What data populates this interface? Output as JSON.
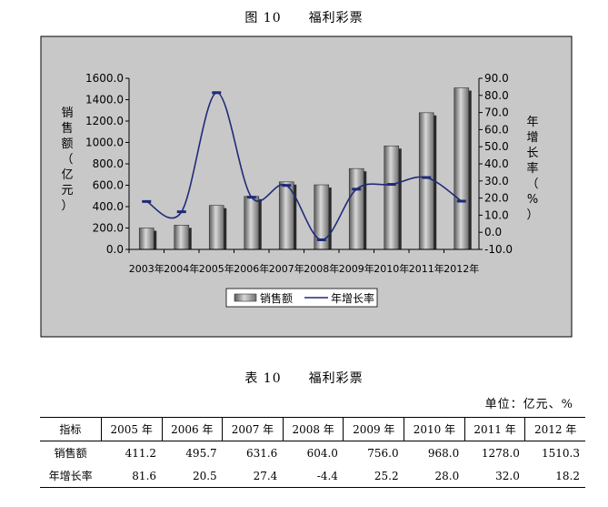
{
  "figure_title": "图 10　　福利彩票",
  "chart_data": {
    "type": "bar",
    "categories": [
      "2003年",
      "2004年",
      "2005年",
      "2006年",
      "2007年",
      "2008年",
      "2009年",
      "2010年",
      "2011年",
      "2012年"
    ],
    "series": [
      {
        "name": "销售额",
        "type": "bar",
        "axis": "left",
        "values": [
          200,
          227,
          411.2,
          495.7,
          631.6,
          604.0,
          756.0,
          968.0,
          1278.0,
          1510.3
        ]
      },
      {
        "name": "年增长率",
        "type": "line",
        "axis": "right",
        "values": [
          18.0,
          12.0,
          81.6,
          20.5,
          27.4,
          -4.4,
          25.2,
          28.0,
          32.0,
          18.2
        ]
      }
    ],
    "ylabel": "销售额（亿元）",
    "y2label": "年增长率（%）",
    "ylim": [
      0,
      1600
    ],
    "y2lim": [
      -10,
      90
    ],
    "yticks": [
      "0.0",
      "200.0",
      "400.0",
      "600.0",
      "800.0",
      "1000.0",
      "1200.0",
      "1400.0",
      "1600.0"
    ],
    "y2ticks": [
      "-10.0",
      "0.0",
      "10.0",
      "20.0",
      "30.0",
      "40.0",
      "50.0",
      "60.0",
      "70.0",
      "80.0",
      "90.0"
    ],
    "legend_position": "bottom",
    "grid": false,
    "colors": {
      "bar": "#8a8a8a",
      "line": "#1f2a78",
      "plot_bg": "#c8c8c8"
    }
  },
  "table": {
    "title": "表 10　　福利彩票",
    "unit": "单位：亿元、%",
    "headers": [
      "指标",
      "2005 年",
      "2006 年",
      "2007 年",
      "2008 年",
      "2009 年",
      "2010 年",
      "2011 年",
      "2012 年"
    ],
    "rows": [
      [
        "销售额",
        "411.2",
        "495.7",
        "631.6",
        "604.0",
        "756.0",
        "968.0",
        "1278.0",
        "1510.3"
      ],
      [
        "年增长率",
        "81.6",
        "20.5",
        "27.4",
        "-4.4",
        "25.2",
        "28.0",
        "32.0",
        "18.2"
      ]
    ]
  }
}
